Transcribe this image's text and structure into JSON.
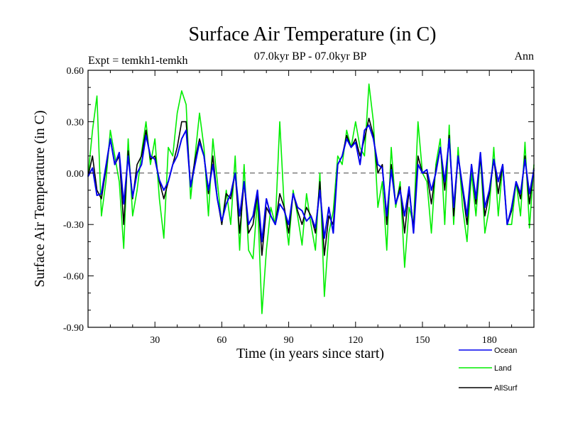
{
  "chart_data": {
    "type": "line",
    "title": "Surface Air Temperature (in C)",
    "subtitle_left": "Expt = temkh1-temkh",
    "subtitle_center": "07.0kyr BP - 07.0kyr BP",
    "subtitle_right": "Ann",
    "xlabel": "Time (in years since start)",
    "ylabel": "Surface Air Temperature (in C)",
    "xlim": [
      0,
      200
    ],
    "ylim": [
      -0.9,
      0.6
    ],
    "xticks": [
      30,
      60,
      90,
      120,
      150,
      180
    ],
    "xtick_labels": [
      "30",
      "60",
      "90",
      "120",
      "150",
      "180"
    ],
    "yticks": [
      0.6,
      0.3,
      0.0,
      -0.3,
      -0.6,
      -0.9
    ],
    "ytick_labels": [
      "0.60",
      "0.30",
      "0.00",
      "-0.30",
      "-0.60",
      "-0.90"
    ],
    "zero_line": 0.0,
    "legend_position": "bottom-right",
    "x": [
      0,
      2,
      4,
      6,
      8,
      10,
      12,
      14,
      16,
      18,
      20,
      22,
      24,
      26,
      28,
      30,
      32,
      34,
      36,
      38,
      40,
      42,
      44,
      46,
      48,
      50,
      52,
      54,
      56,
      58,
      60,
      62,
      64,
      66,
      68,
      70,
      72,
      74,
      76,
      78,
      80,
      82,
      84,
      86,
      88,
      90,
      92,
      94,
      96,
      98,
      100,
      102,
      104,
      106,
      108,
      110,
      112,
      114,
      116,
      118,
      120,
      122,
      124,
      126,
      128,
      130,
      132,
      134,
      136,
      138,
      140,
      142,
      144,
      146,
      148,
      150,
      152,
      154,
      156,
      158,
      160,
      162,
      164,
      166,
      168,
      170,
      172,
      174,
      176,
      178,
      180,
      182,
      184,
      186,
      188,
      190,
      192,
      194,
      196,
      198,
      200
    ],
    "series": [
      {
        "name": "Ocean",
        "color": "#0000ee",
        "values": [
          -0.02,
          0.03,
          -0.13,
          -0.12,
          0.04,
          0.2,
          0.05,
          0.12,
          -0.18,
          0.1,
          -0.14,
          0.0,
          0.05,
          0.22,
          0.1,
          0.08,
          -0.04,
          -0.1,
          -0.05,
          0.05,
          0.1,
          0.2,
          0.25,
          -0.08,
          0.05,
          0.18,
          0.1,
          -0.1,
          0.05,
          -0.15,
          -0.28,
          -0.18,
          -0.12,
          0.0,
          -0.25,
          -0.05,
          -0.3,
          -0.25,
          -0.1,
          -0.4,
          -0.15,
          -0.25,
          -0.3,
          -0.18,
          -0.22,
          -0.3,
          -0.12,
          -0.2,
          -0.22,
          -0.28,
          -0.25,
          -0.32,
          -0.1,
          -0.38,
          -0.2,
          -0.35,
          0.05,
          0.1,
          0.2,
          0.15,
          0.18,
          0.05,
          0.25,
          0.28,
          0.2,
          0.05,
          0.03,
          -0.25,
          0.02,
          -0.18,
          -0.1,
          -0.25,
          -0.08,
          -0.35,
          0.05,
          0.0,
          0.02,
          -0.1,
          0.0,
          0.15,
          -0.05,
          0.2,
          -0.2,
          0.1,
          -0.08,
          -0.25,
          0.05,
          -0.15,
          0.12,
          -0.2,
          -0.1,
          0.08,
          -0.05,
          0.05,
          -0.3,
          -0.2,
          -0.05,
          -0.12,
          0.08,
          -0.12,
          0.02
        ]
      },
      {
        "name": "Land",
        "color": "#00ee00",
        "values": [
          -0.02,
          0.25,
          0.45,
          -0.25,
          -0.05,
          0.25,
          0.1,
          -0.05,
          -0.44,
          0.2,
          -0.25,
          -0.1,
          0.12,
          0.3,
          0.05,
          0.2,
          -0.15,
          -0.38,
          0.15,
          0.1,
          0.35,
          0.48,
          0.4,
          -0.15,
          0.1,
          0.35,
          0.15,
          -0.25,
          0.2,
          -0.05,
          -0.3,
          -0.1,
          -0.3,
          0.1,
          -0.45,
          0.05,
          -0.45,
          -0.5,
          -0.15,
          -0.82,
          -0.45,
          -0.2,
          -0.3,
          0.3,
          -0.2,
          -0.42,
          -0.1,
          -0.25,
          -0.42,
          -0.12,
          -0.3,
          -0.45,
          0.0,
          -0.72,
          -0.35,
          -0.22,
          0.1,
          0.05,
          0.25,
          0.15,
          0.3,
          0.15,
          0.1,
          0.52,
          0.3,
          -0.2,
          -0.05,
          -0.45,
          0.15,
          -0.2,
          -0.05,
          -0.55,
          -0.2,
          -0.3,
          0.3,
          0.0,
          -0.05,
          -0.35,
          0.05,
          0.2,
          -0.3,
          0.28,
          -0.3,
          0.15,
          -0.2,
          -0.4,
          0.0,
          -0.25,
          0.1,
          -0.35,
          -0.2,
          0.15,
          -0.25,
          0.05,
          -0.3,
          -0.3,
          -0.05,
          -0.25,
          0.18,
          -0.32,
          0.05
        ]
      },
      {
        "name": "AllSurf",
        "color": "#000000",
        "values": [
          -0.02,
          0.1,
          -0.1,
          -0.15,
          0.02,
          0.2,
          0.05,
          0.1,
          -0.3,
          0.13,
          -0.15,
          0.05,
          0.1,
          0.25,
          0.08,
          0.1,
          -0.05,
          -0.15,
          -0.05,
          0.05,
          0.15,
          0.3,
          0.3,
          -0.08,
          0.08,
          0.2,
          0.1,
          -0.12,
          0.1,
          -0.15,
          -0.3,
          -0.12,
          -0.15,
          0.0,
          -0.35,
          -0.05,
          -0.35,
          -0.3,
          -0.12,
          -0.48,
          -0.2,
          -0.25,
          -0.3,
          -0.12,
          -0.2,
          -0.35,
          -0.12,
          -0.22,
          -0.3,
          -0.2,
          -0.25,
          -0.35,
          -0.05,
          -0.48,
          -0.25,
          -0.3,
          0.05,
          0.1,
          0.22,
          0.15,
          0.2,
          0.1,
          0.2,
          0.32,
          0.22,
          0.0,
          0.05,
          -0.3,
          0.05,
          -0.18,
          -0.08,
          -0.35,
          -0.1,
          -0.32,
          0.1,
          0.0,
          0.0,
          -0.18,
          0.02,
          0.15,
          -0.1,
          0.22,
          -0.25,
          0.1,
          -0.1,
          -0.3,
          0.05,
          -0.18,
          0.1,
          -0.25,
          -0.12,
          0.08,
          -0.12,
          0.05,
          -0.3,
          -0.22,
          -0.05,
          -0.15,
          0.1,
          -0.18,
          0.03
        ]
      }
    ]
  }
}
